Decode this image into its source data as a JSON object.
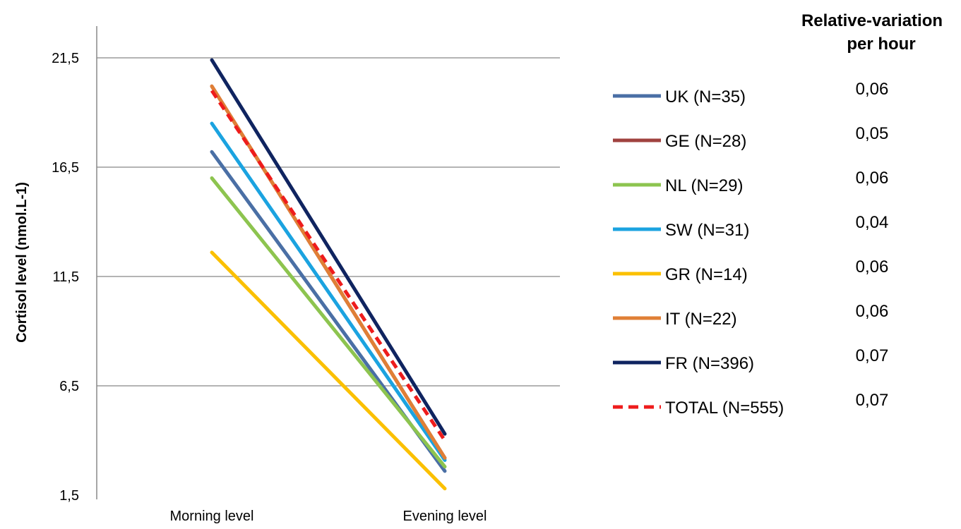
{
  "chart_data": {
    "type": "line",
    "x": [
      "Morning level",
      "Evening level"
    ],
    "ylabel": "Cortisol level (nmol.L-1)",
    "xlabel": "",
    "ylim": [
      1.5,
      21.5
    ],
    "yticks": [
      "21,5",
      "16,5",
      "11,5",
      "6,5",
      "1,5"
    ],
    "ytick_values": [
      21.5,
      16.5,
      11.5,
      6.5,
      1.5
    ],
    "grid": true,
    "legend_position": "right",
    "series": [
      {
        "name": "UK (N=35)",
        "values": [
          17.2,
          2.6
        ],
        "color": "#4a6fa5",
        "dashed": false
      },
      {
        "name": "GE (N=28)",
        "values": [
          20.2,
          3.2
        ],
        "color": "#a0423f",
        "dashed": false
      },
      {
        "name": "NL (N=29)",
        "values": [
          16.0,
          2.8
        ],
        "color": "#8dc44f",
        "dashed": false
      },
      {
        "name": "SW (N=31)",
        "values": [
          18.5,
          3.1
        ],
        "color": "#1ba3e0",
        "dashed": false
      },
      {
        "name": "GR (N=14)",
        "values": [
          12.6,
          1.8
        ],
        "color": "#fbc000",
        "dashed": false
      },
      {
        "name": "IT (N=22)",
        "values": [
          20.2,
          3.2
        ],
        "color": "#e07f36",
        "dashed": false
      },
      {
        "name": "FR (N=396)",
        "values": [
          21.4,
          4.3
        ],
        "color": "#0f2460",
        "dashed": false
      },
      {
        "name": "TOTAL (N=555)",
        "values": [
          20.0,
          4.0
        ],
        "color": "#ee1c1c",
        "dashed": true
      }
    ],
    "relative_variation": {
      "title_line1": "Relative-variation",
      "title_line2": "per hour",
      "values": [
        "0,06",
        "0,05",
        "0,06",
        "0,04",
        "0,06",
        "0,06",
        "0,07",
        "0,07"
      ]
    }
  }
}
